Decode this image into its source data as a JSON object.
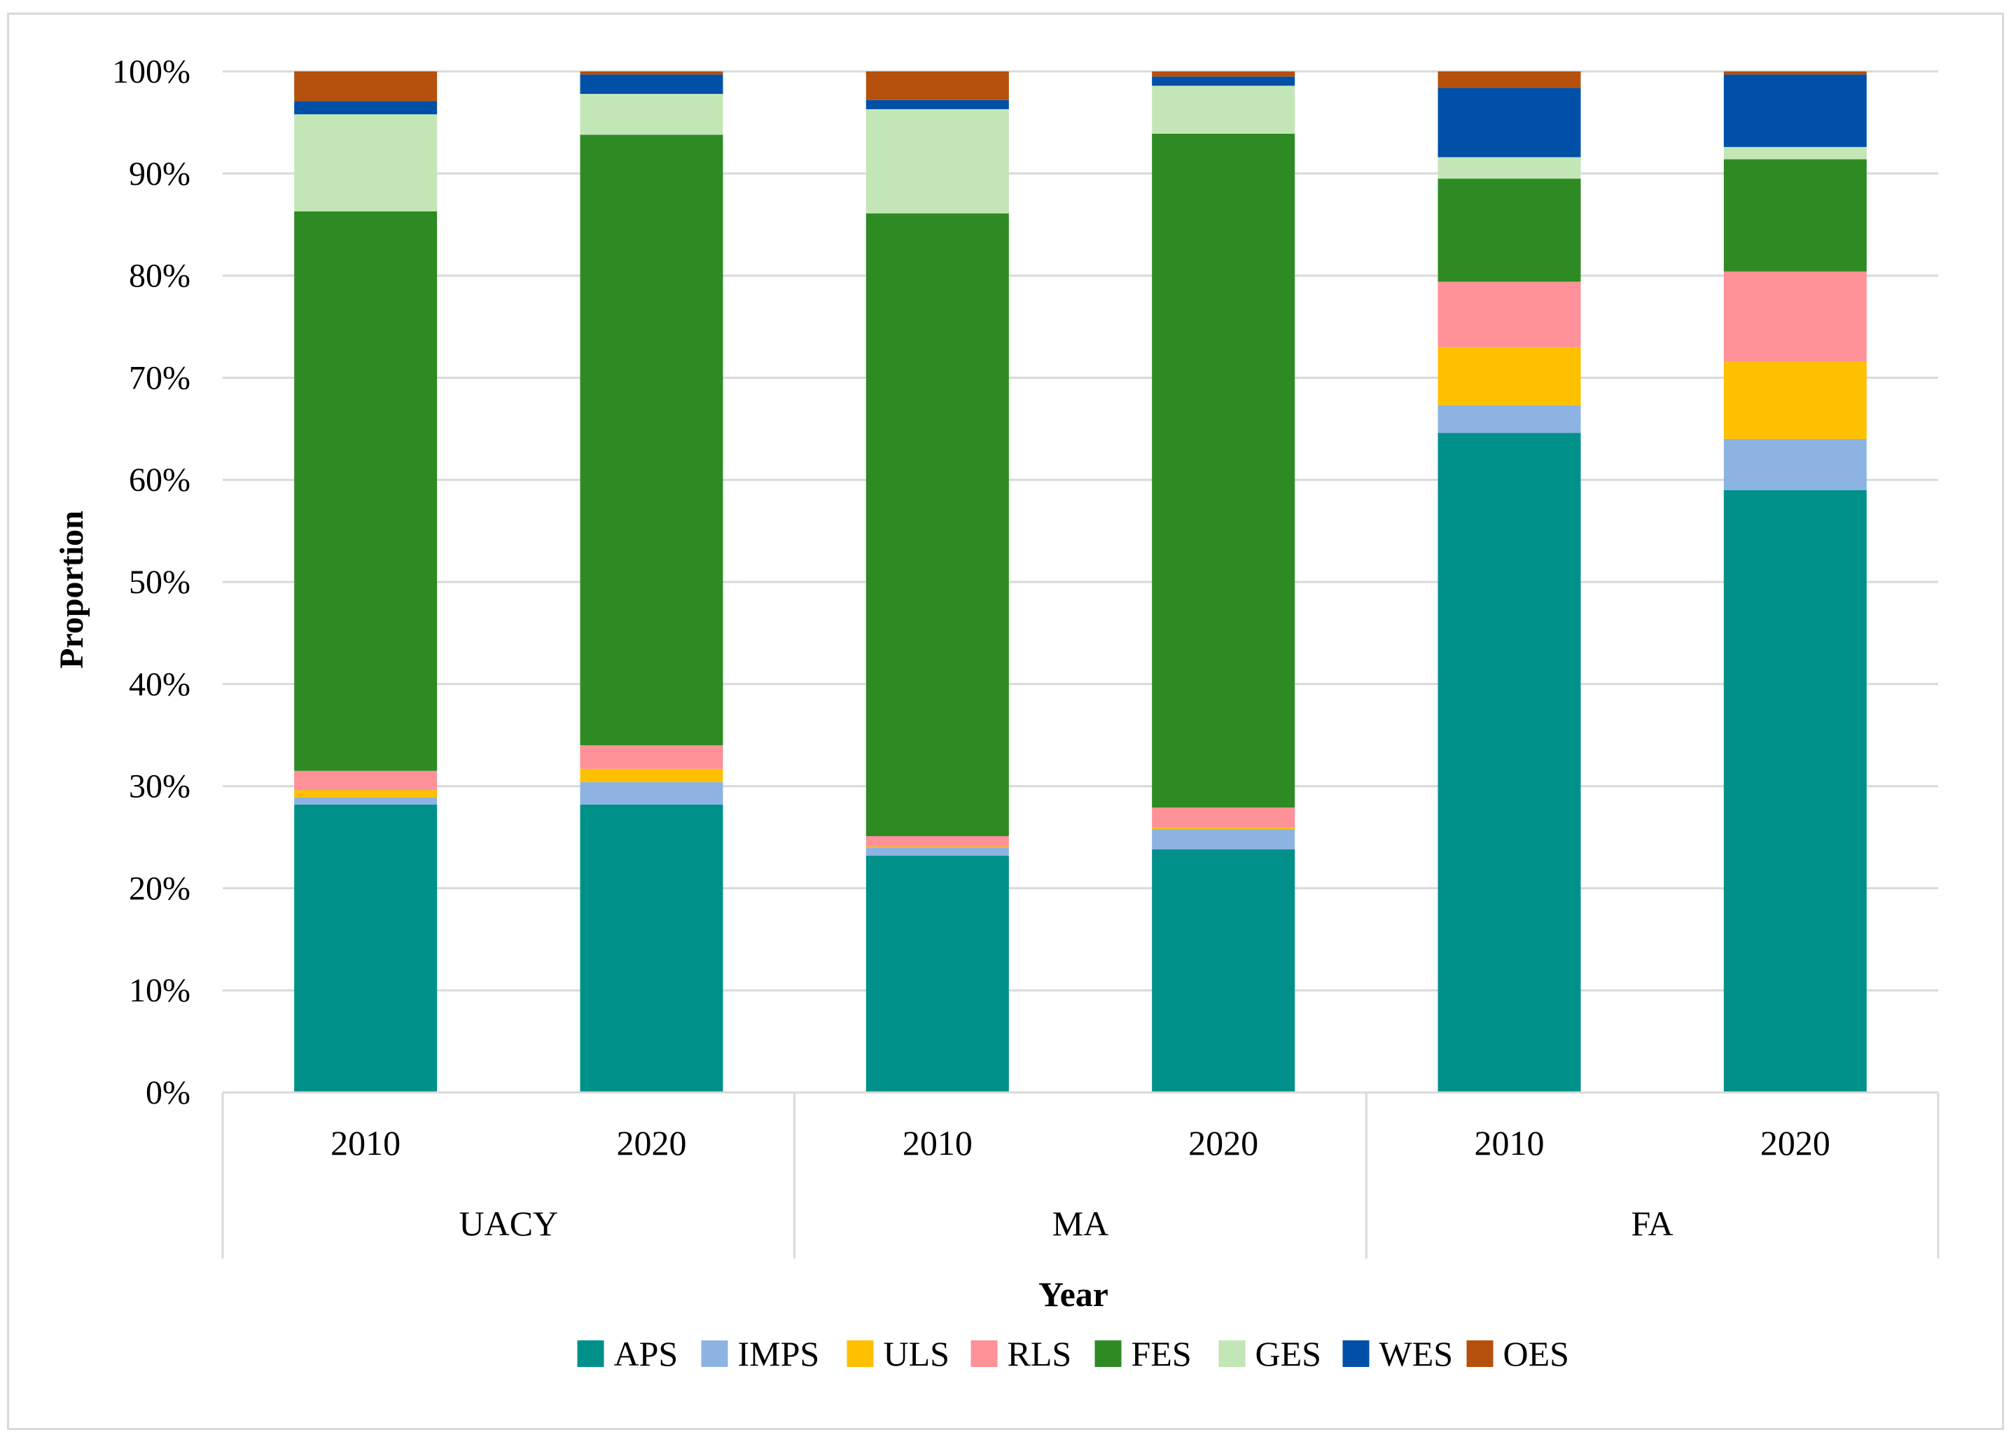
{
  "chart_data": {
    "type": "bar",
    "stacked": true,
    "normalized_percent": true,
    "title": "",
    "xlabel": "Year",
    "ylabel": "Proportion",
    "ylim": [
      0,
      100
    ],
    "y_ticks": [
      "0%",
      "10%",
      "20%",
      "30%",
      "40%",
      "50%",
      "60%",
      "70%",
      "80%",
      "90%",
      "100%"
    ],
    "grid": true,
    "legend_position": "bottom",
    "groups": [
      {
        "label": "UACY",
        "categories": [
          "2010",
          "2020"
        ]
      },
      {
        "label": "MA",
        "categories": [
          "2010",
          "2020"
        ]
      },
      {
        "label": "FA",
        "categories": [
          "2010",
          "2020"
        ]
      }
    ],
    "categories": [
      "UACY 2010",
      "UACY 2020",
      "MA 2010",
      "MA 2020",
      "FA 2010",
      "FA 2020"
    ],
    "series": [
      {
        "name": "APS",
        "color": "#00908A",
        "values": [
          28.2,
          28.2,
          23.2,
          23.8,
          64.6,
          59.0
        ]
      },
      {
        "name": "IMPS",
        "color": "#8DB3E2",
        "values": [
          0.7,
          2.2,
          0.8,
          2.0,
          2.7,
          5.0
        ]
      },
      {
        "name": "ULS",
        "color": "#FFC000",
        "values": [
          0.7,
          1.3,
          0.1,
          0.2,
          5.7,
          7.6
        ]
      },
      {
        "name": "RLS",
        "color": "#FF9199",
        "values": [
          1.9,
          2.3,
          1.0,
          1.9,
          6.4,
          8.8
        ]
      },
      {
        "name": "FES",
        "color": "#2E8B23",
        "values": [
          54.8,
          59.8,
          61.0,
          66.0,
          10.1,
          11.0
        ]
      },
      {
        "name": "GES",
        "color": "#C3E6B6",
        "values": [
          9.5,
          4.0,
          10.2,
          4.7,
          2.1,
          1.2
        ]
      },
      {
        "name": "WES",
        "color": "#0050A8",
        "values": [
          1.3,
          1.9,
          0.9,
          0.9,
          6.8,
          7.1
        ]
      },
      {
        "name": "OES",
        "color": "#B5510D",
        "values": [
          2.9,
          0.3,
          2.8,
          0.5,
          1.6,
          0.3
        ]
      }
    ]
  }
}
